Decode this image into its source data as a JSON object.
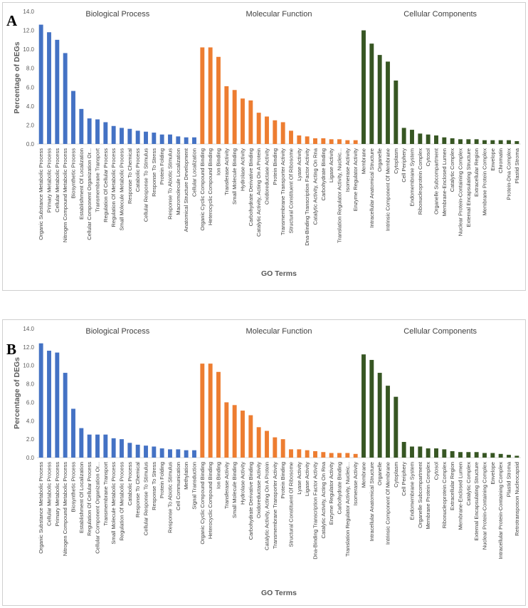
{
  "figure": {
    "panel_labels": [
      "A",
      "B"
    ]
  },
  "colors": {
    "biological_process": "#4472c4",
    "molecular_function": "#ed7d31",
    "cellular_components": "#375623"
  },
  "chart_data": [
    {
      "type": "bar",
      "panel": "A",
      "xlabel": "GO Terms",
      "ylabel": "Percentage of DEGs",
      "ylim": [
        0,
        14
      ],
      "yticks": [
        "0.0",
        "2.0",
        "4.0",
        "6.0",
        "8.0",
        "10.0",
        "12.0",
        "14.0"
      ],
      "grid": false,
      "groups": [
        {
          "name": "Biological Process",
          "color": "#4472c4",
          "categories": [
            "Organic Substance Metabolic Process",
            "Primary Metabolic Process",
            "Cellular Metabolic Process",
            "Nitrogen Compound Metabolic Process",
            "Biosynthetic Process",
            "Establishment Of Localization",
            "Cellular Component Organization Or...",
            "Transmembrane Transport",
            "Regulation Of Cellular Process",
            "Regulation Of Metabolic Process",
            "Small Molecule Metabolic Process",
            "Response To Chemical",
            "Catabolic Process",
            "Cellular Response To Stimulus",
            "Response To Stress",
            "Protein Folding",
            "Response To Abiotic Stimulus",
            "Macromolecule Localization",
            "Anatomical Structure Development",
            "Cellular Localization"
          ],
          "values": [
            12.6,
            11.8,
            11.0,
            9.6,
            5.6,
            3.7,
            2.7,
            2.6,
            2.3,
            1.9,
            1.7,
            1.6,
            1.4,
            1.3,
            1.2,
            1.0,
            1.0,
            0.8,
            0.7,
            0.7
          ]
        },
        {
          "name": "Molecular Function",
          "color": "#ed7d31",
          "categories": [
            "Organic Cyclic Compound Binding",
            "Heterocyclic Compound Binding",
            "Ion Binding",
            "Transferase Activity",
            "Small Molecule Binding",
            "Hydrolase Activity",
            "Carbohydrate Derivative Binding",
            "Catalytic Activity, Acting On A Protein",
            "Oxidoreductase Activity",
            "Protein Binding",
            "Transmembrane Transporter Activity",
            "Structural Constituent Of Ribosome",
            "Lyase Activity",
            "Dna-Binding Transcription Factor Activity",
            "Catalytic Activity, Acting On Rna",
            "Carbohydrate Binding",
            "Ligase Activity",
            "Translation Regulator Activity, Nucleic...",
            "Isomerase Activity",
            "Enzyme Regulator Activity"
          ],
          "values": [
            10.2,
            10.2,
            9.2,
            6.1,
            5.7,
            4.8,
            4.6,
            3.3,
            2.9,
            2.5,
            2.3,
            1.4,
            0.9,
            0.8,
            0.6,
            0.6,
            0.5,
            0.5,
            0.4,
            0.4
          ]
        },
        {
          "name": "Cellular Components",
          "color": "#375623",
          "categories": [
            "Membrane",
            "Intracellular Anatomical Structure",
            "Organelle",
            "Intrinsic Component Of Membrane",
            "Cytoplasm",
            "Cell Periphery",
            "Endomembrane System",
            "Ribonucleoprotein Complex",
            "Cytosol",
            "Organelle Subcompartment",
            "Membrane-Enclosed Lumen",
            "Catalytic Complex",
            "Nuclear Protein-Containing Complex",
            "External Encapsulating Structure",
            "Extracellular Region",
            "Membrane Protein Complex",
            "Envelope",
            "Chromatin",
            "Protein-Dna Complex",
            "Plastid Stroma"
          ],
          "values": [
            12.0,
            10.6,
            9.4,
            8.7,
            6.7,
            1.7,
            1.5,
            1.1,
            1.0,
            0.9,
            0.7,
            0.6,
            0.5,
            0.5,
            0.5,
            0.4,
            0.4,
            0.4,
            0.4,
            0.3
          ]
        }
      ]
    },
    {
      "type": "bar",
      "panel": "B",
      "xlabel": "GO Terms",
      "ylabel": "Percentage of DEGs",
      "ylim": [
        0,
        14
      ],
      "yticks": [
        "0.0",
        "2.0",
        "4.0",
        "6.0",
        "8.0",
        "10.0",
        "12.0",
        "14.0"
      ],
      "grid": false,
      "groups": [
        {
          "name": "Biological Process",
          "color": "#4472c4",
          "categories": [
            "Organic Substance Metabolic Process",
            "Cellular Metabolic Process",
            "Primary Metabolic Process",
            "Nitrogen Compound Metabolic Process",
            "Biosynthetic Process",
            "Establishment Of Localization",
            "Regulation Of Cellular Process",
            "Cellular Component Organization Or...",
            "Transmembrane Transport",
            "Small Molecule Metabolic Process",
            "Regulation Of Metabolic Process",
            "Catabolic Process",
            "Response To Chemical",
            "Cellular Response To Stimulus",
            "Response To Stress",
            "Protein Folding",
            "Response To Abiotic Stimulus",
            "Cell Communication",
            "Methylation",
            "Signal Transduction"
          ],
          "values": [
            12.4,
            11.6,
            11.4,
            9.2,
            5.3,
            3.2,
            2.5,
            2.5,
            2.5,
            2.1,
            2.0,
            1.6,
            1.4,
            1.3,
            1.2,
            1.0,
            0.9,
            0.9,
            0.8,
            0.8
          ]
        },
        {
          "name": "Molecular Function",
          "color": "#ed7d31",
          "categories": [
            "Organic Cyclic Compound Binding",
            "Heterocyclic Compound Binding",
            "Ion Binding",
            "Transferase Activity",
            "Small Molecule Binding",
            "Hydrolase Activity",
            "Carbohydrate Derivative Binding",
            "Oxidoreductase Activity",
            "Catalytic Activity, Acting On A Protein",
            "Transmembrane Transporter Activity",
            "Protein Binding",
            "Structural Constituent Of Ribosome",
            "Lyase Activity",
            "Ligase Activity",
            "Dna-Binding Transcription Factor Activity",
            "Catalytic Activity, Acting On Rna",
            "Enzyme Regulator Activity",
            "Carbohydrate Binding",
            "Translation Regulator Activity, Nucleic...",
            "Isomerase Activity"
          ],
          "values": [
            10.2,
            10.2,
            9.3,
            6.0,
            5.7,
            5.1,
            4.6,
            3.3,
            2.9,
            2.2,
            2.0,
            0.9,
            0.9,
            0.8,
            0.7,
            0.6,
            0.5,
            0.5,
            0.5,
            0.4
          ]
        },
        {
          "name": "Cellular Components",
          "color": "#375623",
          "categories": [
            "Membrane",
            "Intracellular Anatomical Structure",
            "Organelle",
            "Intrinsic Component Of Membrane",
            "Cytoplasm",
            "Cell Periphery",
            "Endomembrane System",
            "Organelle Subcompartment",
            "Membrane Protein Complex",
            "Cytosol",
            "Ribonucleoprotein Complex",
            "Extracellular Region",
            "Membrane-Enclosed Lumen",
            "Catalytic Complex",
            "External Encapsulating Structure",
            "Nuclear Protein-Containing Complex",
            "Envelope",
            "Intracellular Protein-Containing Complex",
            "Plastid Stroma",
            "Retrotransposon Nucleocapsid"
          ],
          "values": [
            11.2,
            10.6,
            9.2,
            7.8,
            6.6,
            1.7,
            1.2,
            1.2,
            1.0,
            1.0,
            0.9,
            0.7,
            0.6,
            0.6,
            0.6,
            0.5,
            0.5,
            0.4,
            0.3,
            0.2
          ]
        }
      ]
    }
  ]
}
